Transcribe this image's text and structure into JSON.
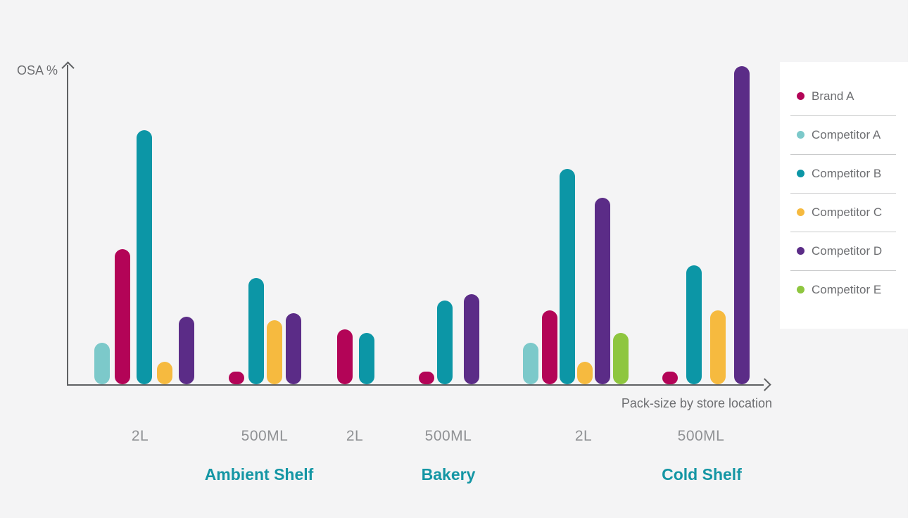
{
  "chart_data": {
    "type": "bar",
    "title": "",
    "ylabel": "OSA %",
    "xlabel": "Pack-size by store location",
    "ylim": [
      0,
      100
    ],
    "grid": false,
    "legend_position": "right",
    "value_unit": "OSA percent, estimated from bar heights",
    "series": [
      {
        "name": "Brand A",
        "color": "#b30457"
      },
      {
        "name": "Competitor A",
        "color": "#7cc9ca"
      },
      {
        "name": "Competitor B",
        "color": "#0c96a6"
      },
      {
        "name": "Competitor C",
        "color": "#f6ba3f"
      },
      {
        "name": "Competitor D",
        "color": "#5b2c87"
      },
      {
        "name": "Competitor E",
        "color": "#8ec63f"
      }
    ],
    "location_labels": [
      "Ambient Shelf",
      "Bakery",
      "Cold Shelf"
    ],
    "groups": [
      {
        "location": "Ambient Shelf",
        "pack": "2L",
        "bars": [
          {
            "series": "Competitor A",
            "value": 13
          },
          {
            "series": "Brand A",
            "value": 42
          },
          {
            "series": "Competitor B",
            "value": 79
          },
          {
            "series": "Competitor C",
            "value": 7
          },
          {
            "series": "Competitor D",
            "value": 21
          }
        ]
      },
      {
        "location": "Ambient Shelf",
        "pack": "500ML",
        "bars": [
          {
            "series": "Brand A",
            "value": 4
          },
          {
            "series": "Competitor B",
            "value": 33
          },
          {
            "series": "Competitor C",
            "value": 20
          },
          {
            "series": "Competitor D",
            "value": 22
          }
        ]
      },
      {
        "location": "Bakery",
        "pack": "2L",
        "bars": [
          {
            "series": "Brand A",
            "value": 17
          },
          {
            "series": "Competitor B",
            "value": 16
          }
        ]
      },
      {
        "location": "Bakery",
        "pack": "500ML",
        "bars": [
          {
            "series": "Brand A",
            "value": 4
          },
          {
            "series": "Competitor B",
            "value": 26
          },
          {
            "series": "Competitor D",
            "value": 28
          }
        ]
      },
      {
        "location": "Cold Shelf",
        "pack": "2L",
        "bars": [
          {
            "series": "Competitor A",
            "value": 13
          },
          {
            "series": "Brand A",
            "value": 23
          },
          {
            "series": "Competitor B",
            "value": 67
          },
          {
            "series": "Competitor C",
            "value": 7
          },
          {
            "series": "Competitor D",
            "value": 58
          },
          {
            "series": "Competitor E",
            "value": 16
          }
        ]
      },
      {
        "location": "Cold Shelf",
        "pack": "500ML",
        "bars": [
          {
            "series": "Brand A",
            "value": 4
          },
          {
            "series": "Competitor B",
            "value": 37
          },
          {
            "series": "Competitor C",
            "value": 23
          },
          {
            "series": "Competitor D",
            "value": 99
          }
        ]
      }
    ],
    "colors": {
      "background": "#f4f4f5",
      "axis": "#5f6163",
      "axis_text": "#6d6e71",
      "tick_text": "#8f9194",
      "location_text": "#1496a4",
      "legend_background": "#ffffff"
    }
  }
}
